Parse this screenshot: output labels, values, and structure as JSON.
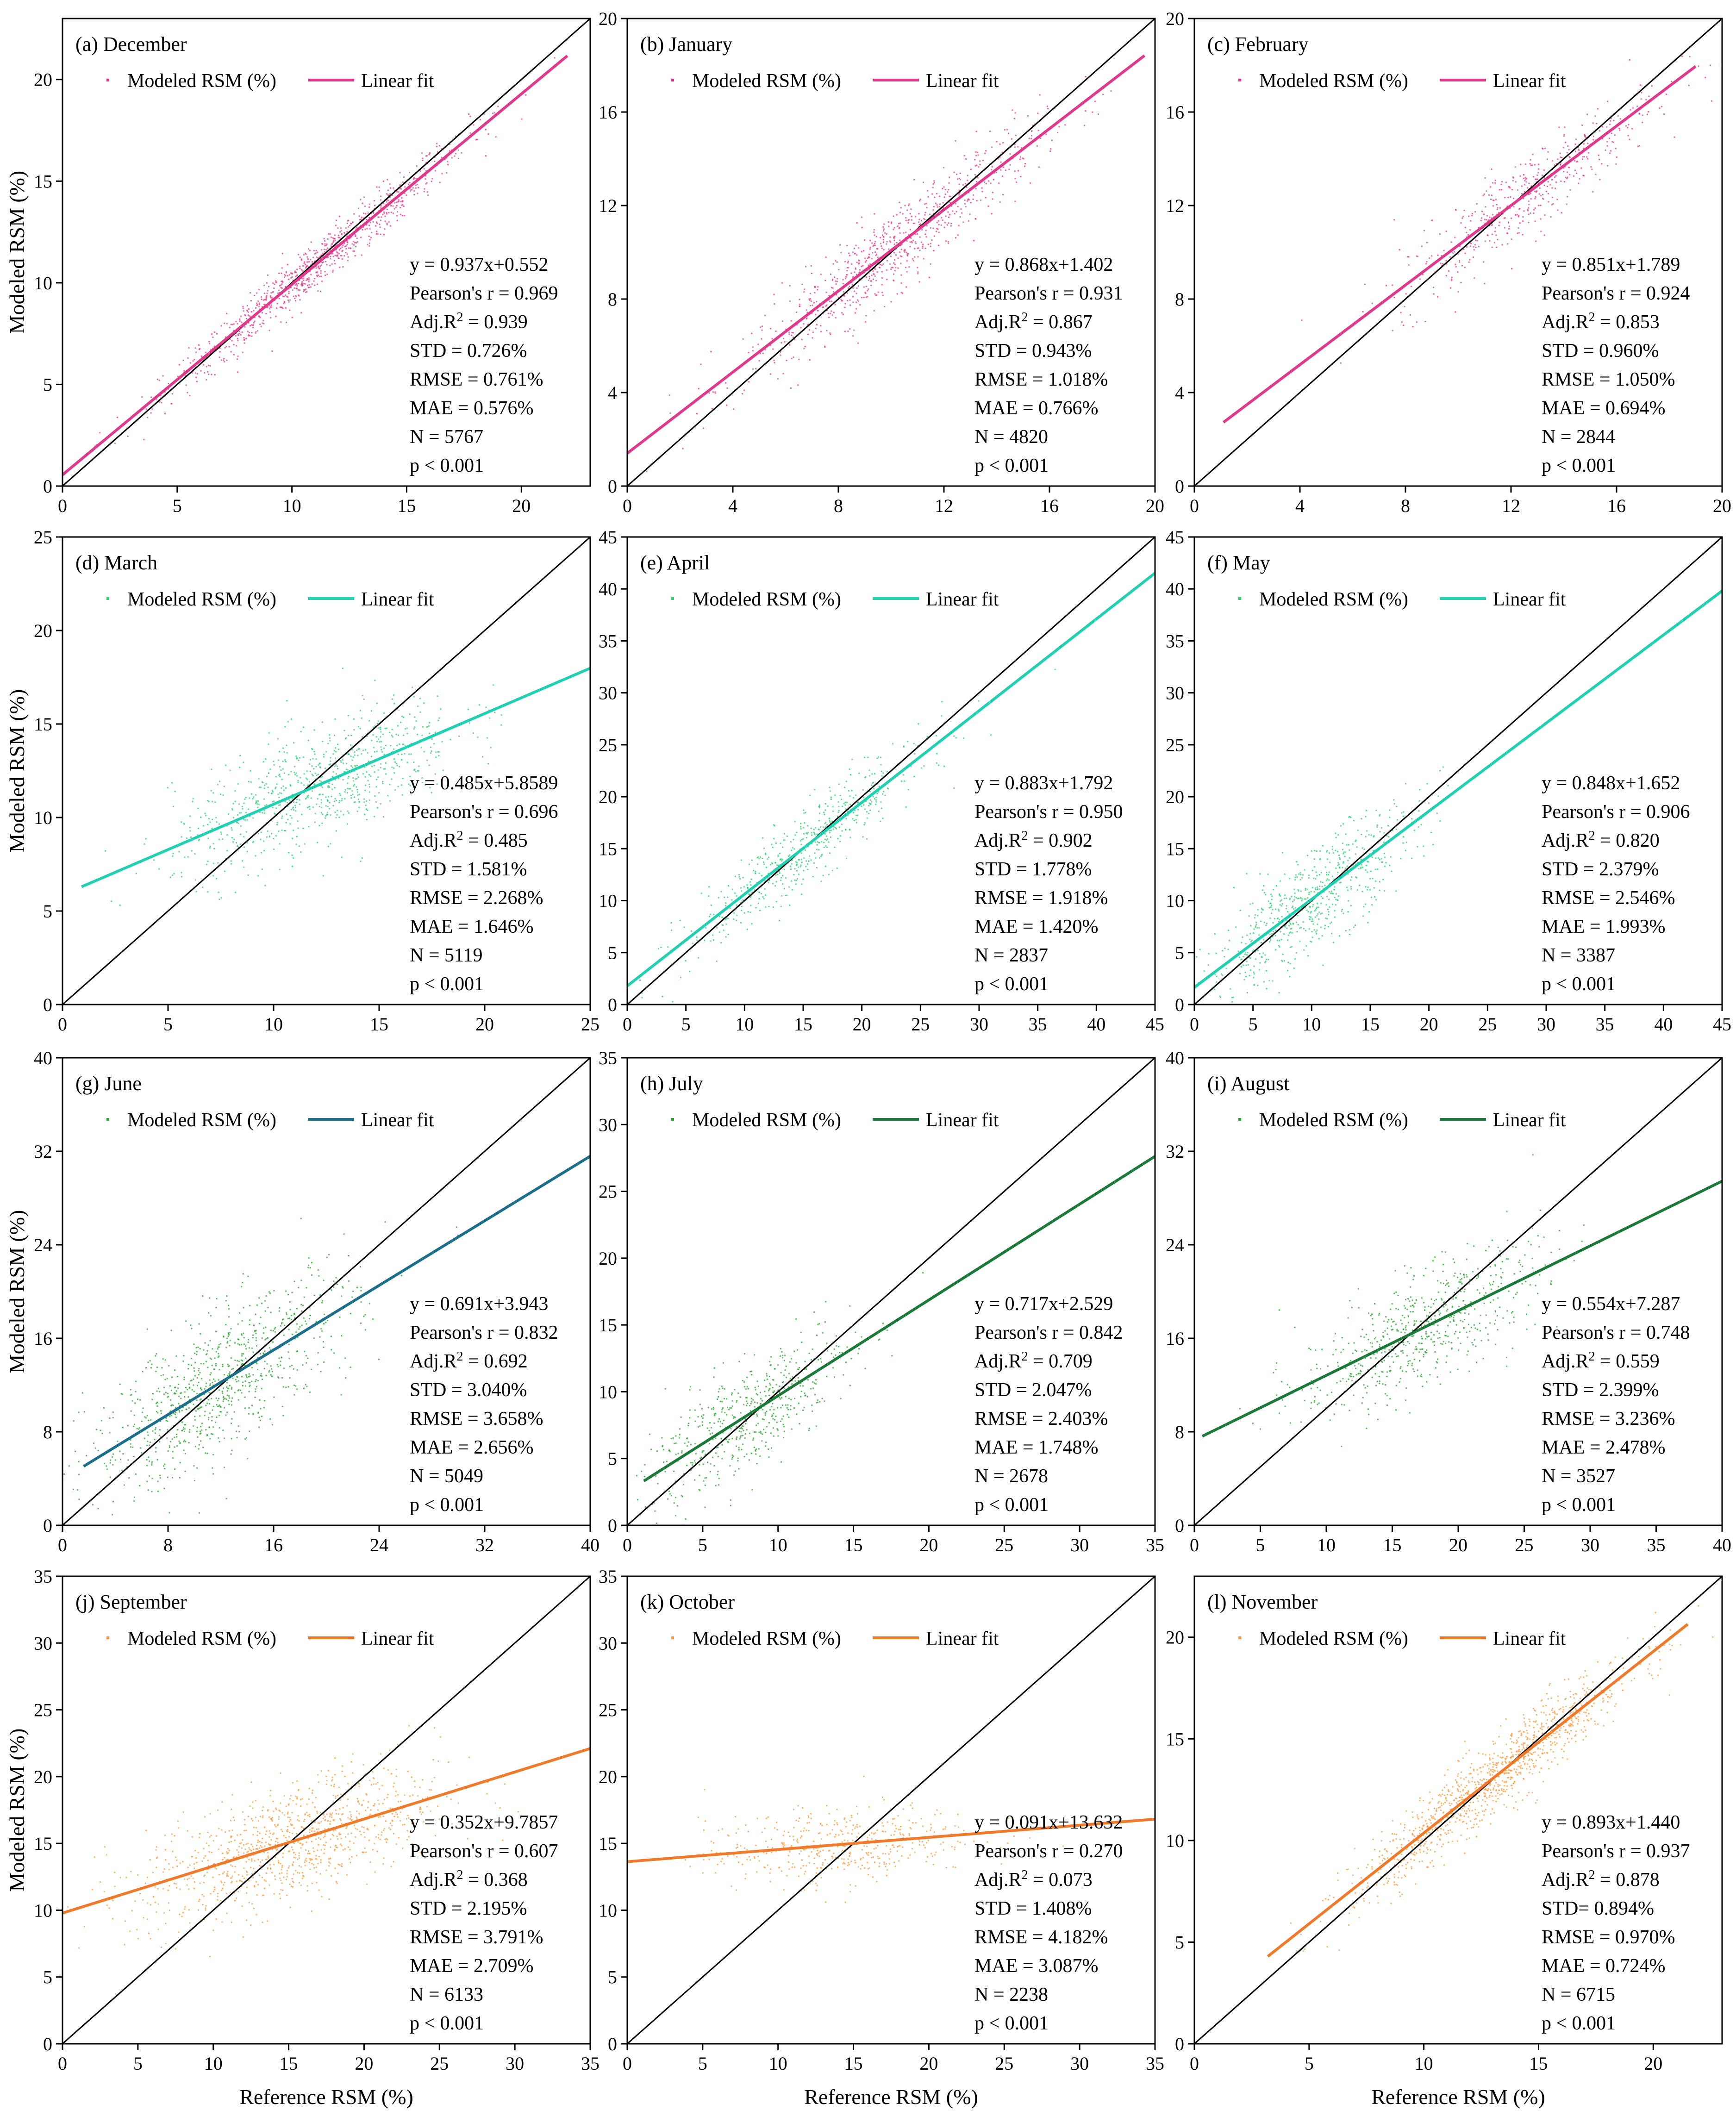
{
  "figure": {
    "xlabel": "Reference  RSM (%)",
    "ylabel": "Modeled RSM (%)",
    "legend_scatter": "Modeled RSM (%)",
    "legend_fit": "Linear fit"
  },
  "chart_data": [
    {
      "type": "scatter",
      "title": "(a) December",
      "color": "#e0388a",
      "xlim": [
        0,
        23
      ],
      "ylim": [
        0,
        23
      ],
      "xticks": [
        0,
        5,
        10,
        15,
        20
      ],
      "yticks": [
        0,
        5,
        10,
        15,
        20
      ],
      "slope": 0.937,
      "intercept": 0.552,
      "fit_x": [
        0,
        22
      ],
      "center": 11,
      "spread": 3.3,
      "noise": 0.6,
      "density": 900,
      "stats": [
        "y = 0.937x+0.552",
        "Pearson's r = 0.969",
        "Adj.R^2 = 0.939",
        "STD = 0.726%",
        "RMSE = 0.761%",
        "MAE = 0.576%",
        "N = 5767",
        "p < 0.001"
      ]
    },
    {
      "type": "scatter",
      "title": "(b) January",
      "color": "#e0388a",
      "xlim": [
        0,
        20
      ],
      "ylim": [
        0,
        20
      ],
      "xticks": [
        0,
        4,
        8,
        12,
        16,
        20
      ],
      "yticks": [
        0,
        4,
        8,
        12,
        16,
        20
      ],
      "slope": 0.868,
      "intercept": 1.402,
      "fit_x": [
        0,
        19.6
      ],
      "center": 10,
      "spread": 2.8,
      "noise": 0.9,
      "density": 800,
      "stats": [
        "y = 0.868x+1.402",
        "Pearson's r = 0.931",
        "Adj.R^2 = 0.867",
        "STD = 0.943%",
        "RMSE = 1.018%",
        "MAE = 0.766%",
        "N = 4820",
        "p < 0.001"
      ]
    },
    {
      "type": "scatter",
      "title": "(c) February",
      "color": "#e0388a",
      "xlim": [
        0,
        20
      ],
      "ylim": [
        0,
        20
      ],
      "xticks": [
        0,
        4,
        8,
        12,
        16,
        20
      ],
      "yticks": [
        0,
        4,
        8,
        12,
        16,
        20
      ],
      "slope": 0.851,
      "intercept": 1.789,
      "fit_x": [
        1.1,
        19
      ],
      "center": 12.5,
      "spread": 2.5,
      "noise": 0.9,
      "density": 500,
      "stats": [
        "y = 0.851x+1.789",
        "Pearson's r = 0.924",
        "Adj.R^2 = 0.853",
        "STD = 0.960%",
        "RMSE = 1.050%",
        "MAE = 0.694%",
        "N = 2844",
        "p < 0.001"
      ]
    },
    {
      "type": "scatter",
      "title": "(d) March",
      "color": "#2ecc71",
      "fit_color": "#1fd1b0",
      "xlim": [
        0,
        25
      ],
      "ylim": [
        0,
        25
      ],
      "xticks": [
        0,
        5,
        10,
        15,
        20,
        25
      ],
      "yticks": [
        0,
        5,
        10,
        15,
        20,
        25
      ],
      "slope": 0.485,
      "intercept": 5.8589,
      "fit_x": [
        0.9,
        25
      ],
      "center": 12,
      "spread": 3.4,
      "noise": 1.6,
      "density": 800,
      "stats": [
        "y = 0.485x+5.8589",
        "Pearson's r = 0.696",
        "Adj.R^2 = 0.485",
        "STD = 1.581%",
        "RMSE = 2.268%",
        "MAE = 1.646%",
        "N = 5119",
        "p < 0.001"
      ]
    },
    {
      "type": "scatter",
      "title": "(e) April",
      "color": "#2ecc71",
      "fit_color": "#1fd1b0",
      "xlim": [
        0,
        45
      ],
      "ylim": [
        0,
        45
      ],
      "xticks": [
        0,
        5,
        10,
        15,
        20,
        25,
        30,
        35,
        40,
        45
      ],
      "yticks": [
        0,
        5,
        10,
        15,
        20,
        25,
        30,
        35,
        40,
        45
      ],
      "slope": 0.883,
      "intercept": 1.792,
      "fit_x": [
        0,
        45
      ],
      "center": 15,
      "spread": 5,
      "noise": 1.8,
      "density": 550,
      "stats": [
        "y = 0.883x+1.792",
        "Pearson's r = 0.950",
        "Adj.R^2 = 0.902",
        "STD = 1.778%",
        "RMSE = 1.918%",
        "MAE = 1.420%",
        "N = 2837",
        "p < 0.001"
      ]
    },
    {
      "type": "scatter",
      "title": "(f) May",
      "color": "#2ecc71",
      "fit_color": "#1fd1b0",
      "xlim": [
        0,
        45
      ],
      "ylim": [
        0,
        45
      ],
      "xticks": [
        0,
        5,
        10,
        15,
        20,
        25,
        30,
        35,
        40,
        45
      ],
      "yticks": [
        0,
        5,
        10,
        15,
        20,
        25,
        30,
        35,
        40,
        45
      ],
      "slope": 0.848,
      "intercept": 1.652,
      "fit_x": [
        0,
        45
      ],
      "center": 10,
      "spread": 4.5,
      "noise": 2.4,
      "density": 650,
      "stats": [
        "y = 0.848x+1.652",
        "Pearson's r = 0.906",
        "Adj.R^2 = 0.820",
        "STD = 2.379%",
        "RMSE = 2.546%",
        "MAE = 1.993%",
        "N = 3387",
        "p < 0.001"
      ]
    },
    {
      "type": "scatter",
      "title": "(g) June",
      "color": "#27a02c",
      "fit_color": "#1c6f8a",
      "xlim": [
        0,
        40
      ],
      "ylim": [
        0,
        40
      ],
      "xticks": [
        0,
        8,
        16,
        24,
        32,
        40
      ],
      "yticks": [
        0,
        8,
        16,
        24,
        32,
        40
      ],
      "slope": 0.691,
      "intercept": 3.943,
      "fit_x": [
        1.6,
        40
      ],
      "center": 12,
      "spread": 5,
      "noise": 3,
      "density": 900,
      "stats": [
        "y = 0.691x+3.943",
        "Pearson's r = 0.832",
        "Adj.R^2 = 0.692",
        "STD = 3.040%",
        "RMSE = 3.658%",
        "MAE = 2.656%",
        "N = 5049",
        "p < 0.001"
      ]
    },
    {
      "type": "scatter",
      "title": "(h) July",
      "color": "#27a02c",
      "fit_color": "#1b7a3a",
      "xlim": [
        0,
        35
      ],
      "ylim": [
        0,
        35
      ],
      "xticks": [
        0,
        5,
        10,
        15,
        20,
        25,
        30,
        35
      ],
      "yticks": [
        0,
        5,
        10,
        15,
        20,
        25,
        30,
        35
      ],
      "slope": 0.717,
      "intercept": 2.529,
      "fit_x": [
        1.1,
        35
      ],
      "center": 8,
      "spread": 3.5,
      "noise": 2,
      "density": 550,
      "stats": [
        "y = 0.717x+2.529",
        "Pearson's r = 0.842",
        "Adj.R^2 = 0.709",
        "STD = 2.047%",
        "RMSE = 2.403%",
        "MAE = 1.748%",
        "N = 2678",
        "p < 0.001"
      ]
    },
    {
      "type": "scatter",
      "title": "(i) August",
      "color": "#27a02c",
      "fit_color": "#1b7a3a",
      "xlim": [
        0,
        40
      ],
      "ylim": [
        0,
        40
      ],
      "xticks": [
        0,
        5,
        10,
        15,
        20,
        25,
        30,
        35,
        40
      ],
      "yticks": [
        0,
        8,
        16,
        24,
        32,
        40
      ],
      "slope": 0.554,
      "intercept": 7.287,
      "fit_x": [
        0.6,
        40
      ],
      "center": 17,
      "spread": 4.5,
      "noise": 2.4,
      "density": 650,
      "stats": [
        "y = 0.554x+7.287",
        "Pearson's r = 0.748",
        "Adj.R^2 = 0.559",
        "STD = 2.399%",
        "RMSE = 3.236%",
        "MAE = 2.478%",
        "N = 3527",
        "p < 0.001"
      ]
    },
    {
      "type": "scatter",
      "title": "(j) September",
      "color": "#f59a3c",
      "fit_color": "#f07a2a",
      "xlim": [
        0,
        35
      ],
      "ylim": [
        0,
        35
      ],
      "xticks": [
        0,
        5,
        10,
        15,
        20,
        25,
        30,
        35
      ],
      "yticks": [
        0,
        5,
        10,
        15,
        20,
        25,
        30,
        35
      ],
      "slope": 0.352,
      "intercept": 9.7857,
      "fit_x": [
        0,
        35
      ],
      "center": 15,
      "spread": 5,
      "noise": 2.2,
      "density": 1000,
      "stats": [
        "y = 0.352x+9.7857",
        "Pearson's r = 0.607",
        "Adj.R^2 = 0.368",
        "STD = 2.195%",
        "RMSE = 3.791%",
        "MAE = 2.709%",
        "N = 6133",
        "p < 0.001"
      ]
    },
    {
      "type": "scatter",
      "title": "(k) October",
      "color": "#f59a3c",
      "fit_color": "#f07a2a",
      "xlim": [
        0,
        35
      ],
      "ylim": [
        0,
        35
      ],
      "xticks": [
        0,
        5,
        10,
        15,
        20,
        25,
        30,
        35
      ],
      "yticks": [
        0,
        5,
        10,
        15,
        20,
        25,
        30,
        35
      ],
      "slope": 0.091,
      "intercept": 13.632,
      "fit_x": [
        0,
        35
      ],
      "center": 14,
      "spread": 4.5,
      "noise": 1.4,
      "density": 450,
      "stats": [
        "y = 0.091x+13.632",
        "Pearson's r = 0.270",
        "Adj.R^2 = 0.073",
        "STD = 1.408%",
        "RMSE = 4.182%",
        "MAE = 3.087%",
        "N = 2238",
        "p < 0.001"
      ]
    },
    {
      "type": "scatter",
      "title": "(l) November",
      "color": "#f59a3c",
      "fit_color": "#f07a2a",
      "xlim": [
        0,
        23
      ],
      "ylim": [
        0,
        23
      ],
      "xticks": [
        0,
        5,
        10,
        15,
        20
      ],
      "yticks": [
        0,
        5,
        10,
        15,
        20
      ],
      "slope": 0.893,
      "intercept": 1.44,
      "fit_x": [
        3.2,
        21.5
      ],
      "center": 13,
      "spread": 3,
      "noise": 0.9,
      "density": 1100,
      "stats": [
        "y = 0.893x+1.440",
        "Pearson's r = 0.937",
        "Adj.R^2 = 0.878",
        "STD= 0.894%",
        "RMSE = 0.970%",
        "MAE = 0.724%",
        "N = 6715",
        "p < 0.001"
      ]
    }
  ]
}
